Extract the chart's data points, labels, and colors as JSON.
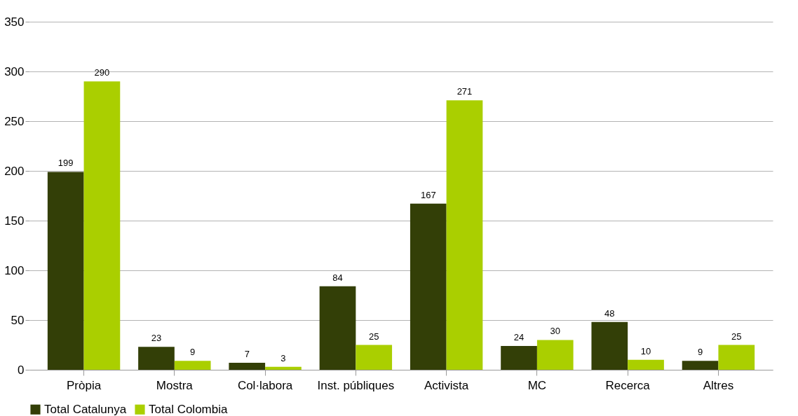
{
  "chart_data": {
    "type": "bar",
    "categories": [
      "Pròpia",
      "Mostra",
      "Col·labora",
      "Inst. públiques",
      "Activista",
      "MC",
      "Recerca",
      "Altres"
    ],
    "series": [
      {
        "name": "Total Catalunya",
        "color": "#333f07",
        "values": [
          199,
          23,
          7,
          84,
          167,
          24,
          48,
          9
        ]
      },
      {
        "name": "Total Colombia",
        "color": "#aacf00",
        "values": [
          290,
          9,
          3,
          25,
          271,
          30,
          10,
          25
        ]
      }
    ],
    "ylim": [
      0,
      350
    ],
    "yticks": [
      0,
      50,
      100,
      150,
      200,
      250,
      300,
      350
    ],
    "grid": "y",
    "legend": "bottom",
    "data_labels": true
  }
}
